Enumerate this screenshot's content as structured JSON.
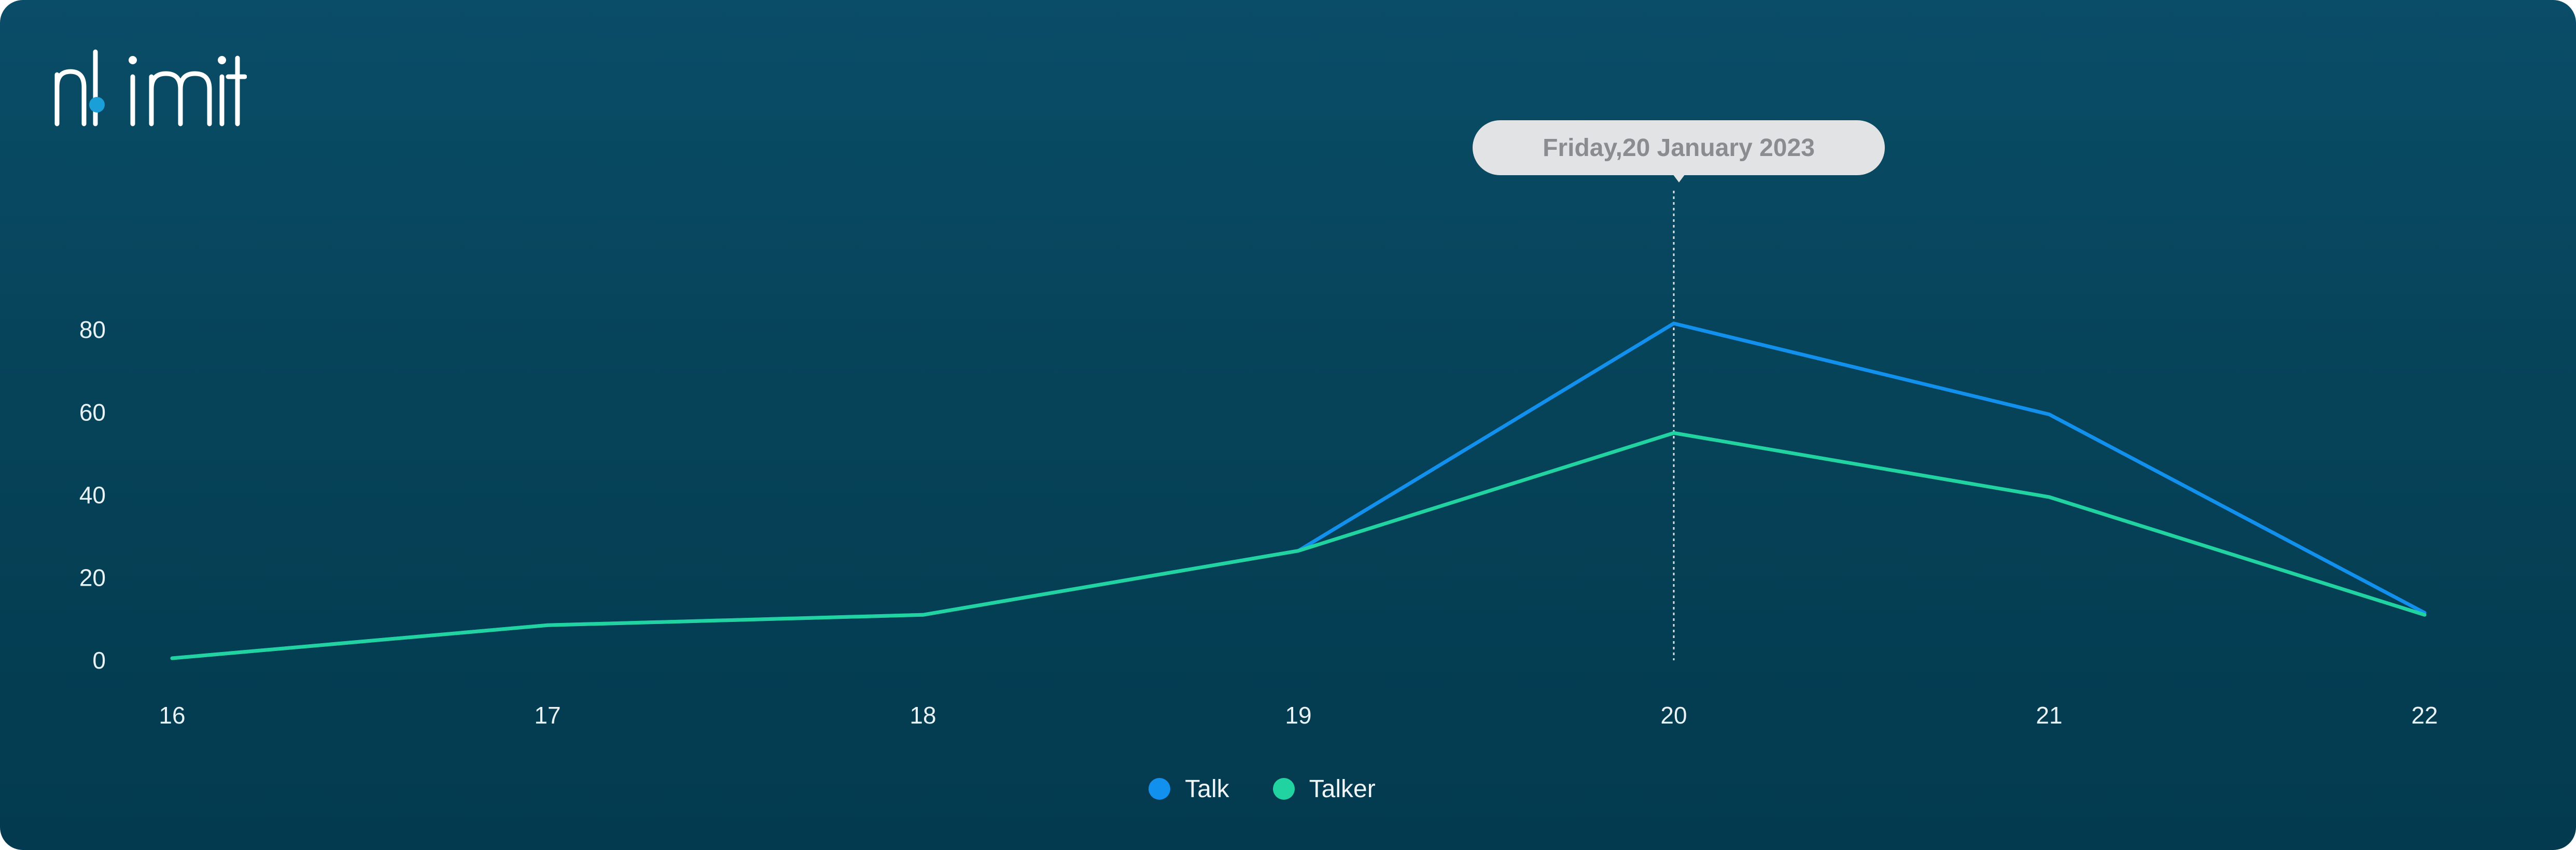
{
  "brand": {
    "name": "nlimit",
    "dot_color": "#1b9fd8"
  },
  "tooltip": {
    "day": "Friday,",
    "date": "20 January 2023"
  },
  "chart_data": {
    "type": "line",
    "x": [
      16,
      17,
      18,
      19,
      20,
      21,
      22
    ],
    "categories": [
      "16",
      "17",
      "18",
      "19",
      "20",
      "21",
      "22"
    ],
    "series": [
      {
        "name": "Talk",
        "color": "#1190ee",
        "values": [
          0.5,
          8.5,
          11,
          26.5,
          81.5,
          59.5,
          11.5
        ]
      },
      {
        "name": "Talker",
        "color": "#22d3a2",
        "values": [
          0.5,
          8.5,
          11,
          26.5,
          55,
          39.5,
          11
        ]
      }
    ],
    "y_ticks": [
      0,
      20,
      40,
      60,
      80
    ],
    "ylim": [
      0,
      80
    ],
    "xlim": [
      16,
      22
    ],
    "highlight_x": 20,
    "grid": false,
    "legend": "bottom-center",
    "title": "",
    "xlabel": "",
    "ylabel": ""
  }
}
